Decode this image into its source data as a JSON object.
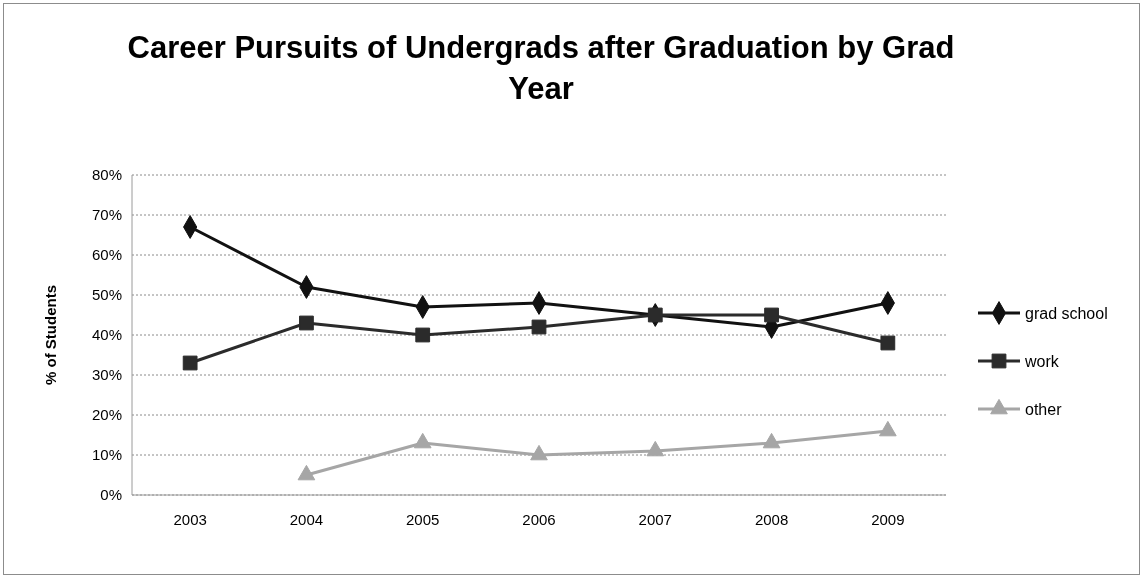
{
  "chart_data": {
    "type": "line",
    "title": "Career Pursuits of Undergrads after Graduation by Grad Year",
    "ylabel": "% of Students",
    "categories": [
      "2003",
      "2004",
      "2005",
      "2006",
      "2007",
      "2008",
      "2009"
    ],
    "series": [
      {
        "name": "grad school",
        "color": "#111111",
        "marker": "diamond",
        "values": [
          67,
          52,
          47,
          48,
          45,
          42,
          48
        ]
      },
      {
        "name": "work",
        "color": "#2b2b2b",
        "marker": "square",
        "values": [
          33,
          43,
          40,
          42,
          45,
          45,
          38
        ]
      },
      {
        "name": "other",
        "color": "#a6a6a6",
        "marker": "triangle",
        "values": [
          null,
          5,
          13,
          10,
          11,
          13,
          16
        ]
      }
    ],
    "ylim": [
      0,
      80
    ],
    "yticks": [
      {
        "value": 0,
        "label": "0%"
      },
      {
        "value": 10,
        "label": "10%"
      },
      {
        "value": 20,
        "label": "20%"
      },
      {
        "value": 30,
        "label": "30%"
      },
      {
        "value": 40,
        "label": "40%"
      },
      {
        "value": 50,
        "label": "50%"
      },
      {
        "value": 60,
        "label": "60%"
      },
      {
        "value": 70,
        "label": "70%"
      },
      {
        "value": 80,
        "label": "80%"
      }
    ],
    "grid": "y",
    "legend": "right"
  }
}
